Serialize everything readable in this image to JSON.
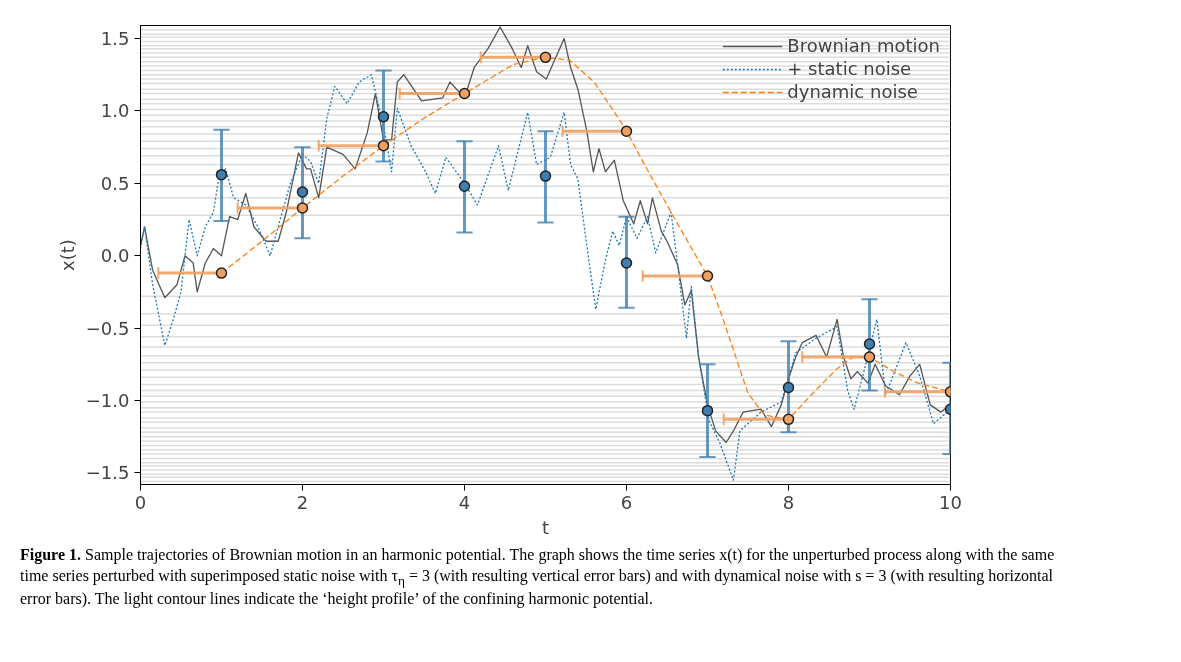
{
  "chart_data": {
    "type": "line",
    "xlabel": "t",
    "ylabel": "x(t)",
    "xlim": [
      0,
      10
    ],
    "xticks": [
      0,
      2,
      4,
      6,
      8,
      10
    ],
    "ylim": [
      -1.58,
      1.59
    ],
    "yticks": [
      {
        "value": -1.5,
        "label": "−1.5"
      },
      {
        "value": -1,
        "label": "−1.0"
      },
      {
        "value": -0.5,
        "label": "−0.5"
      },
      {
        "value": 0,
        "label": "0.0"
      },
      {
        "value": 0.5,
        "label": "0.5"
      },
      {
        "value": 1,
        "label": "1.0"
      },
      {
        "value": 1.5,
        "label": "1.5"
      }
    ],
    "grid": false,
    "legend": "top right",
    "marker": "none",
    "series": [
      {
        "name": "Brownian motion",
        "color": "#555555",
        "line_style": "solid",
        "x": [
          0,
          0.05,
          0.15,
          0.3,
          0.45,
          0.55,
          0.65,
          0.7,
          0.8,
          0.9,
          1.0,
          1.1,
          1.2,
          1.3,
          1.4,
          1.55,
          1.7,
          1.8,
          1.95,
          2.05,
          2.1,
          2.2,
          2.3,
          2.5,
          2.65,
          2.8,
          2.9,
          3.0,
          3.1,
          3.17,
          3.25,
          3.47,
          3.73,
          3.82,
          4.0,
          4.12,
          4.29,
          4.44,
          4.59,
          4.7,
          4.78,
          4.89,
          5.01,
          5.23,
          5.31,
          5.4,
          5.51,
          5.59,
          5.66,
          5.74,
          5.85,
          5.96,
          6.09,
          6.17,
          6.26,
          6.32,
          6.43,
          6.5,
          6.63,
          6.72,
          6.8,
          6.89,
          7.0,
          7.1,
          7.23,
          7.32,
          7.44,
          7.66,
          7.79,
          7.91,
          8.0,
          8.09,
          8.17,
          8.34,
          8.47,
          8.6,
          8.68,
          8.77,
          8.85,
          8.98,
          9.07,
          9.2,
          9.37,
          9.5,
          9.62,
          9.75,
          9.88,
          10
        ],
        "values": [
          0.07,
          0.2,
          -0.1,
          -0.29,
          -0.2,
          0.0,
          -0.05,
          -0.25,
          -0.05,
          0.05,
          0.0,
          0.27,
          0.25,
          0.43,
          0.2,
          0.1,
          0.1,
          0.3,
          0.71,
          0.6,
          0.6,
          0.4,
          0.75,
          0.7,
          0.6,
          0.85,
          1.12,
          0.8,
          0.8,
          1.2,
          1.25,
          1.07,
          1.09,
          1.2,
          1.09,
          1.3,
          1.43,
          1.58,
          1.43,
          1.3,
          1.45,
          1.27,
          1.22,
          1.5,
          1.3,
          1.15,
          0.86,
          0.58,
          0.74,
          0.58,
          0.66,
          0.38,
          0.22,
          0.38,
          0.22,
          0.4,
          0.17,
          0.1,
          -0.06,
          -0.34,
          -0.24,
          -0.7,
          -1.03,
          -1.21,
          -1.29,
          -1.21,
          -1.08,
          -1.06,
          -1.18,
          -1.03,
          -0.85,
          -0.7,
          -0.6,
          -0.55,
          -0.7,
          -0.44,
          -0.7,
          -0.85,
          -0.8,
          -0.88,
          -0.75,
          -0.9,
          -0.96,
          -0.83,
          -0.75,
          -1.03,
          -1.08,
          -1.03
        ]
      },
      {
        "name": "+ static noise",
        "color": "#1f77b4",
        "line_style": "dotted",
        "x": [
          0,
          0.05,
          0.15,
          0.3,
          0.4,
          0.5,
          0.6,
          0.7,
          0.8,
          0.9,
          0.97,
          1.05,
          1.15,
          1.3,
          1.45,
          1.6,
          1.7,
          1.85,
          2.0,
          2.1,
          2.2,
          2.3,
          2.4,
          2.55,
          2.7,
          2.85,
          3.0,
          3.1,
          3.17,
          3.34,
          3.52,
          3.64,
          3.77,
          4.0,
          4.16,
          4.42,
          4.54,
          4.78,
          4.89,
          5.06,
          5.23,
          5.31,
          5.4,
          5.51,
          5.62,
          5.74,
          5.83,
          5.91,
          6.0,
          6.13,
          6.26,
          6.36,
          6.55,
          6.63,
          6.74,
          6.8,
          6.89,
          7.02,
          7.15,
          7.32,
          7.4,
          7.66,
          7.91,
          8.09,
          8.34,
          8.6,
          8.73,
          8.81,
          8.94,
          9.09,
          9.2,
          9.45,
          9.62,
          9.79,
          10
        ],
        "values": [
          0.05,
          0.2,
          -0.2,
          -0.62,
          -0.45,
          -0.25,
          0.25,
          0.0,
          0.2,
          0.3,
          0.55,
          0.6,
          0.4,
          0.35,
          0.2,
          0.0,
          0.2,
          0.5,
          0.7,
          0.65,
          0.5,
          0.95,
          1.17,
          1.05,
          1.2,
          1.25,
          0.9,
          0.58,
          1.02,
          0.76,
          0.58,
          0.43,
          0.68,
          0.5,
          0.35,
          0.76,
          0.45,
          0.99,
          0.63,
          0.68,
          0.99,
          0.63,
          0.53,
          0.07,
          -0.37,
          -0.03,
          0.17,
          0.07,
          0.27,
          0.12,
          0.27,
          0.02,
          0.3,
          -0.06,
          -0.57,
          -0.21,
          -0.7,
          -1.14,
          -1.29,
          -1.55,
          -1.21,
          -1.08,
          -1.01,
          -0.67,
          -0.57,
          -0.49,
          -0.93,
          -1.06,
          -0.78,
          -0.44,
          -0.96,
          -0.6,
          -0.83,
          -1.16,
          -1.06
        ]
      },
      {
        "name": "dynamic noise",
        "color": "#ff7f0e",
        "line_style": "dashed",
        "x": [
          1,
          1.5,
          2,
          2.5,
          3,
          3.5,
          4,
          4.3,
          4.6,
          5,
          5.3,
          5.6,
          5.9,
          6,
          6.3,
          6.6,
          7,
          7.2,
          7.5,
          7.7,
          8,
          8.3,
          8.6,
          8.8,
          9,
          9.3,
          9.6,
          10
        ],
        "values": [
          -0.12,
          0.1,
          0.33,
          0.55,
          0.76,
          0.95,
          1.12,
          1.22,
          1.32,
          1.37,
          1.35,
          1.2,
          0.95,
          0.86,
          0.55,
          0.25,
          -0.14,
          -0.45,
          -0.95,
          -1.1,
          -1.13,
          -0.95,
          -0.78,
          -0.7,
          -0.7,
          -0.8,
          -0.88,
          -0.94
        ]
      },
      {
        "type": "scatter",
        "marker": "circle",
        "color": "#3f7fb0",
        "x": [
          1,
          2,
          3,
          4,
          5,
          6,
          7,
          8,
          9,
          10
        ],
        "values": [
          0.56,
          0.44,
          0.96,
          0.48,
          0.55,
          -0.05,
          -1.07,
          -0.91,
          -0.61,
          -1.06
        ],
        "errors": [
          [
            0.24,
            0.87
          ],
          [
            0.12,
            0.75
          ],
          [
            0.65,
            1.28
          ],
          [
            0.16,
            0.79
          ],
          [
            0.23,
            0.86
          ],
          [
            -0.36,
            0.27
          ],
          [
            -1.39,
            -0.75
          ],
          [
            -1.22,
            -0.59
          ],
          [
            -0.93,
            -0.3
          ],
          [
            -1.37,
            -0.74
          ]
        ]
      },
      {
        "type": "scatter",
        "marker": "circle",
        "color": "#f0a060",
        "x": [
          1,
          2,
          3,
          4,
          5,
          6,
          7,
          8,
          9,
          10
        ],
        "values": [
          -0.12,
          0.33,
          0.76,
          1.12,
          1.37,
          0.86,
          -0.14,
          -1.13,
          -0.7,
          -0.94
        ],
        "xerrors": [
          [
            0.22,
            1
          ],
          [
            1.2,
            2
          ],
          [
            2.2,
            3
          ],
          [
            3.2,
            4
          ],
          [
            4.2,
            5
          ],
          [
            5.21,
            6
          ],
          [
            6.2,
            7
          ],
          [
            7.2,
            8
          ],
          [
            8.17,
            9
          ],
          [
            9.19,
            10
          ]
        ]
      }
    ],
    "ref_lines": [
      {
        "axis": "y",
        "value": 0.28,
        "color": "#dcdcdc"
      },
      {
        "axis": "y",
        "value": 0.4,
        "color": "#dcdcdc"
      },
      {
        "axis": "y",
        "value": 0.48,
        "color": "#dcdcdc"
      },
      {
        "axis": "y",
        "value": 0.56,
        "color": "#dcdcdc"
      },
      {
        "axis": "y",
        "value": 0.63,
        "color": "#dcdcdc"
      },
      {
        "axis": "y",
        "value": 0.69,
        "color": "#dcdcdc"
      },
      {
        "axis": "y",
        "value": 0.74,
        "color": "#dcdcdc"
      },
      {
        "axis": "y",
        "value": 0.79,
        "color": "#dcdcdc"
      },
      {
        "axis": "y",
        "value": 0.84,
        "color": "#dcdcdc"
      },
      {
        "axis": "y",
        "value": 0.89,
        "color": "#dcdcdc"
      },
      {
        "axis": "y",
        "value": 0.93,
        "color": "#dcdcdc"
      },
      {
        "axis": "y",
        "value": 0.97,
        "color": "#dcdcdc"
      },
      {
        "axis": "y",
        "value": 1.01,
        "color": "#dcdcdc"
      },
      {
        "axis": "y",
        "value": 1.05,
        "color": "#dcdcdc"
      },
      {
        "axis": "y",
        "value": 1.08,
        "color": "#dcdcdc"
      },
      {
        "axis": "y",
        "value": 1.12,
        "color": "#dcdcdc"
      },
      {
        "axis": "y",
        "value": 1.15,
        "color": "#dcdcdc"
      },
      {
        "axis": "y",
        "value": 1.19,
        "color": "#dcdcdc"
      },
      {
        "axis": "y",
        "value": 1.22,
        "color": "#dcdcdc"
      },
      {
        "axis": "y",
        "value": 1.25,
        "color": "#dcdcdc"
      },
      {
        "axis": "y",
        "value": 1.28,
        "color": "#dcdcdc"
      },
      {
        "axis": "y",
        "value": 1.31,
        "color": "#dcdcdc"
      },
      {
        "axis": "y",
        "value": 1.34,
        "color": "#dcdcdc"
      },
      {
        "axis": "y",
        "value": 1.37,
        "color": "#dcdcdc"
      },
      {
        "axis": "y",
        "value": 1.4,
        "color": "#dcdcdc"
      },
      {
        "axis": "y",
        "value": 1.43,
        "color": "#dcdcdc"
      },
      {
        "axis": "y",
        "value": 1.45,
        "color": "#dcdcdc"
      },
      {
        "axis": "y",
        "value": 1.48,
        "color": "#dcdcdc"
      },
      {
        "axis": "y",
        "value": 1.51,
        "color": "#dcdcdc"
      },
      {
        "axis": "y",
        "value": 1.53,
        "color": "#dcdcdc"
      },
      {
        "axis": "y",
        "value": 1.56,
        "color": "#dcdcdc"
      },
      {
        "axis": "y",
        "value": -0.28,
        "color": "#dcdcdc"
      },
      {
        "axis": "y",
        "value": -0.4,
        "color": "#dcdcdc"
      },
      {
        "axis": "y",
        "value": -0.48,
        "color": "#dcdcdc"
      },
      {
        "axis": "y",
        "value": -0.56,
        "color": "#dcdcdc"
      },
      {
        "axis": "y",
        "value": -0.63,
        "color": "#dcdcdc"
      },
      {
        "axis": "y",
        "value": -0.69,
        "color": "#dcdcdc"
      },
      {
        "axis": "y",
        "value": -0.74,
        "color": "#dcdcdc"
      },
      {
        "axis": "y",
        "value": -0.79,
        "color": "#dcdcdc"
      },
      {
        "axis": "y",
        "value": -0.84,
        "color": "#dcdcdc"
      },
      {
        "axis": "y",
        "value": -0.89,
        "color": "#dcdcdc"
      },
      {
        "axis": "y",
        "value": -0.93,
        "color": "#dcdcdc"
      },
      {
        "axis": "y",
        "value": -0.97,
        "color": "#dcdcdc"
      },
      {
        "axis": "y",
        "value": -1.01,
        "color": "#dcdcdc"
      },
      {
        "axis": "y",
        "value": -1.05,
        "color": "#dcdcdc"
      },
      {
        "axis": "y",
        "value": -1.08,
        "color": "#dcdcdc"
      },
      {
        "axis": "y",
        "value": -1.12,
        "color": "#dcdcdc"
      },
      {
        "axis": "y",
        "value": -1.15,
        "color": "#dcdcdc"
      },
      {
        "axis": "y",
        "value": -1.19,
        "color": "#dcdcdc"
      },
      {
        "axis": "y",
        "value": -1.22,
        "color": "#dcdcdc"
      },
      {
        "axis": "y",
        "value": -1.25,
        "color": "#dcdcdc"
      },
      {
        "axis": "y",
        "value": -1.28,
        "color": "#dcdcdc"
      },
      {
        "axis": "y",
        "value": -1.31,
        "color": "#dcdcdc"
      },
      {
        "axis": "y",
        "value": -1.34,
        "color": "#dcdcdc"
      },
      {
        "axis": "y",
        "value": -1.37,
        "color": "#dcdcdc"
      },
      {
        "axis": "y",
        "value": -1.4,
        "color": "#dcdcdc"
      },
      {
        "axis": "y",
        "value": -1.43,
        "color": "#dcdcdc"
      },
      {
        "axis": "y",
        "value": -1.45,
        "color": "#dcdcdc"
      },
      {
        "axis": "y",
        "value": -1.48,
        "color": "#dcdcdc"
      },
      {
        "axis": "y",
        "value": -1.51,
        "color": "#dcdcdc"
      },
      {
        "axis": "y",
        "value": -1.53,
        "color": "#dcdcdc"
      },
      {
        "axis": "y",
        "value": -1.56,
        "color": "#dcdcdc"
      }
    ],
    "annotations": [
      "Figure 1.",
      "Sample trajectories of Brownian motion in an harmonic potential. The graph shows the time series x(t) for the unperturbed process along with the same time series perturbed with superimposed static noise with τ$_{η}$ = 3 (with resulting vertical error bars) and with dynamical noise with s = 3 (with resulting horizontal error bars). The light contour lines indicate the ‘height profile’ of the confining harmonic potential."
    ]
  }
}
